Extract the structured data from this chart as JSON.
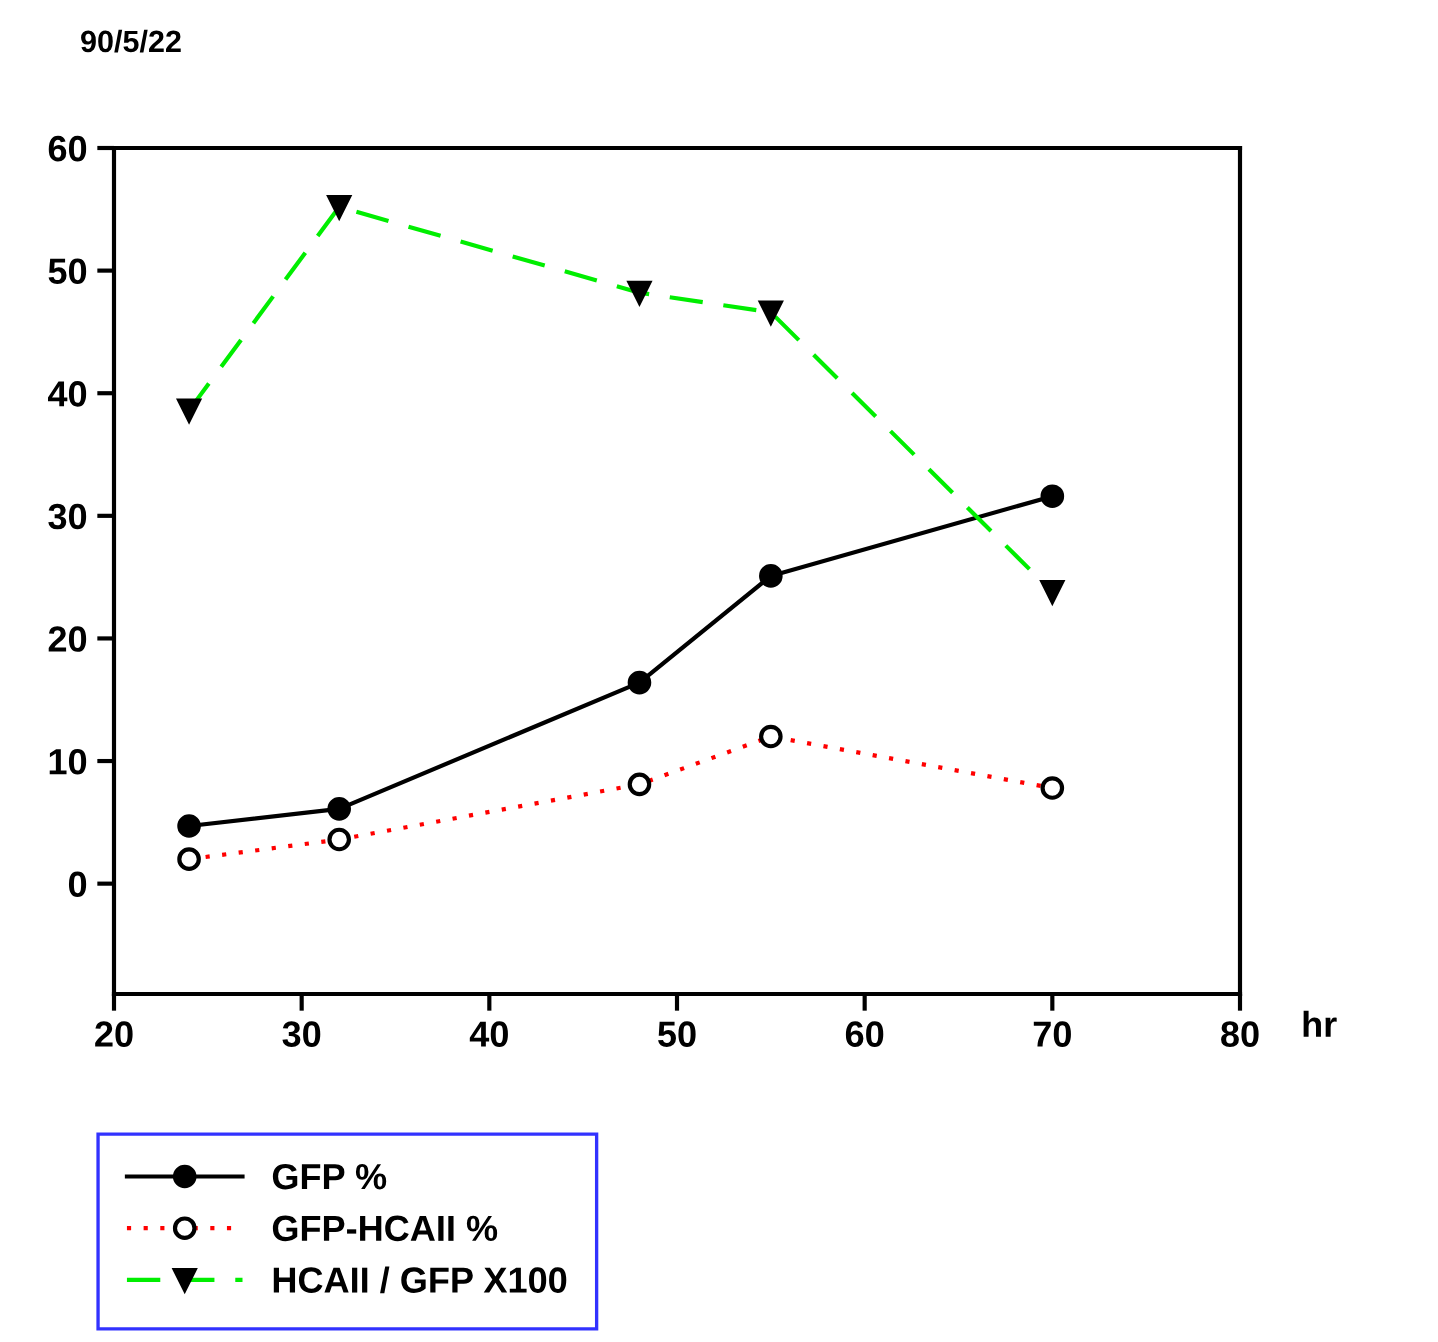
{
  "chart_data": {
    "type": "line",
    "title": "90/5/22",
    "xlabel": "hr",
    "x": [
      24,
      32,
      48,
      55,
      70
    ],
    "series": [
      {
        "name": "GFP %",
        "color": "#000000",
        "marker": "circle",
        "line_style": "solid",
        "values": [
          4.7,
          6.1,
          16.4,
          25.1,
          31.6
        ]
      },
      {
        "name": "GFP-HCAII %",
        "color": "#ff0000",
        "marker": "circle",
        "line_style": "dotted",
        "values": [
          2.0,
          3.6,
          8.1,
          12.0,
          7.8
        ]
      },
      {
        "name": "HCAII / GFP X100",
        "color": "#00ee00",
        "marker": "triangle",
        "line_style": "dashed",
        "values": [
          38.6,
          55.2,
          48.2,
          46.6,
          23.8
        ]
      }
    ],
    "xlim": [
      20,
      80
    ],
    "xticks": [
      20,
      30,
      40,
      50,
      60,
      70,
      80
    ],
    "ylim": [
      -9,
      60
    ],
    "yticks": [
      0,
      10,
      20,
      30,
      40,
      50,
      60
    ],
    "grid": false,
    "legend": "bottom left"
  }
}
